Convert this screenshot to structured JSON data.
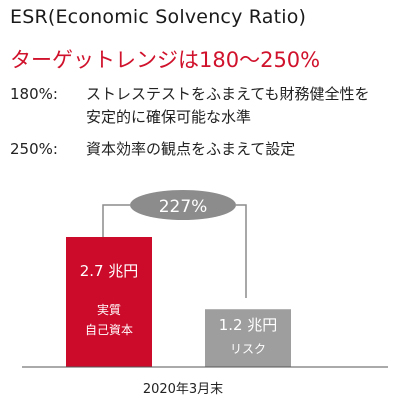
{
  "title": "ESR(Economic Solvency Ratio)",
  "target_range": "ターゲットレンジは180〜250%",
  "notes": [
    {
      "label": "180%:",
      "lines": [
        "ストレステストをふまえても財務健全性を",
        "安定的に確保可能な水準"
      ]
    },
    {
      "label": "250%:",
      "lines": [
        "資本効率の観点をふまえて設定"
      ]
    }
  ],
  "chart_data": {
    "type": "bar",
    "categories": [
      "実質自己資本",
      "リスク"
    ],
    "values": [
      2.7,
      1.2
    ],
    "value_labels": [
      "2.7 兆円",
      "1.2 兆円"
    ],
    "ratio_label": "227%",
    "xlabel": "2020年3月末",
    "colors": [
      "#cc0a2a",
      "#9e9e9e"
    ]
  }
}
